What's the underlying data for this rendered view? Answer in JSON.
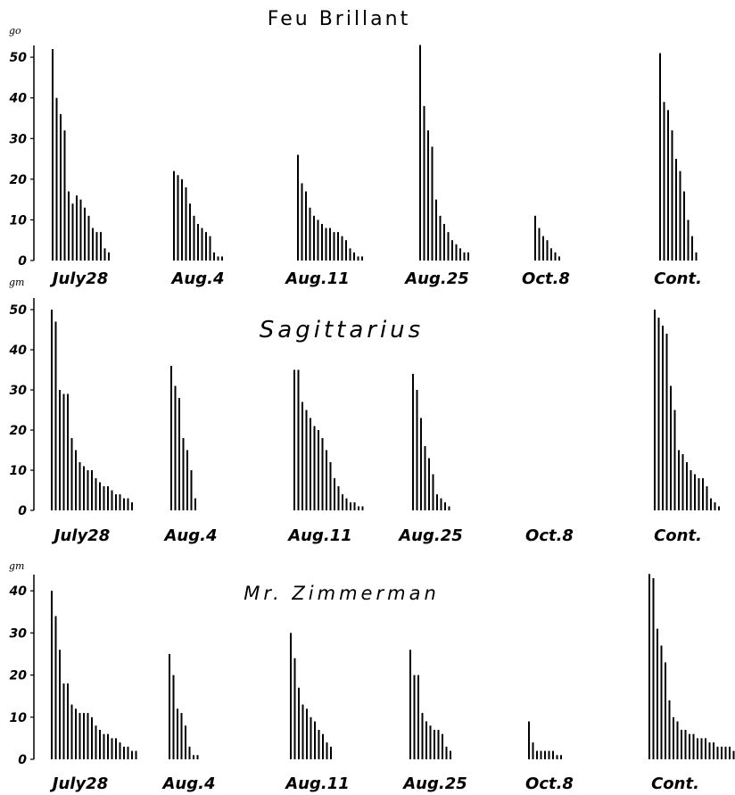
{
  "chart_data": [
    {
      "type": "bar",
      "title": "Feu Brillant",
      "yunit": "go",
      "yticks": [
        0,
        10,
        20,
        30,
        40,
        50
      ],
      "ylim": [
        0,
        52
      ],
      "grid": false,
      "groups": [
        {
          "label": "July28",
          "values": [
            52,
            40,
            36,
            32,
            17,
            14,
            16,
            15,
            13,
            11,
            8,
            7,
            7,
            3,
            2
          ]
        },
        {
          "label": "Aug.4",
          "values": [
            22,
            21,
            20,
            18,
            14,
            11,
            9,
            8,
            7,
            6,
            2,
            1,
            1
          ]
        },
        {
          "label": "Aug.11",
          "values": [
            26,
            19,
            17,
            13,
            11,
            10,
            9,
            8,
            8,
            7,
            7,
            6,
            5,
            3,
            2,
            1,
            1
          ]
        },
        {
          "label": "Aug.25",
          "values": [
            53,
            38,
            32,
            28,
            15,
            11,
            9,
            7,
            5,
            4,
            3,
            2,
            2
          ]
        },
        {
          "label": "Oct.8",
          "values": [
            11,
            8,
            6,
            5,
            3,
            2,
            1
          ]
        },
        {
          "label": "Cont.",
          "values": [
            51,
            39,
            37,
            32,
            25,
            22,
            17,
            10,
            6,
            2
          ]
        }
      ]
    },
    {
      "type": "bar",
      "title": "Sagittarius",
      "yunit": "gm",
      "yticks": [
        0,
        10,
        20,
        30,
        40,
        50
      ],
      "ylim": [
        0,
        52
      ],
      "grid": false,
      "groups": [
        {
          "label": "July28",
          "values": [
            50,
            47,
            30,
            29,
            29,
            18,
            15,
            12,
            11,
            10,
            10,
            8,
            7,
            6,
            6,
            5,
            4,
            4,
            3,
            3,
            2
          ]
        },
        {
          "label": "Aug.4",
          "values": [
            36,
            31,
            28,
            18,
            15,
            10,
            3
          ]
        },
        {
          "label": "Aug.11",
          "values": [
            35,
            35,
            27,
            25,
            23,
            21,
            20,
            18,
            15,
            12,
            8,
            6,
            4,
            3,
            2,
            2,
            1,
            1
          ]
        },
        {
          "label": "Aug.25",
          "values": [
            34,
            30,
            23,
            16,
            13,
            9,
            4,
            3,
            2,
            1
          ]
        },
        {
          "label": "Oct.8",
          "values": []
        },
        {
          "label": "Cont.",
          "values": [
            50,
            48,
            46,
            44,
            31,
            25,
            15,
            14,
            12,
            10,
            9,
            8,
            8,
            6,
            3,
            2,
            1
          ]
        }
      ]
    },
    {
      "type": "bar",
      "title": "Mr. Zimmerman",
      "yunit": "gm",
      "yticks": [
        0,
        10,
        20,
        30,
        40
      ],
      "ylim": [
        0,
        43
      ],
      "grid": false,
      "groups": [
        {
          "label": "July28",
          "values": [
            40,
            34,
            26,
            18,
            18,
            13,
            12,
            11,
            11,
            11,
            10,
            8,
            7,
            6,
            6,
            5,
            5,
            4,
            3,
            3,
            2,
            2
          ]
        },
        {
          "label": "Aug.4",
          "values": [
            25,
            20,
            12,
            11,
            8,
            3,
            1,
            1
          ]
        },
        {
          "label": "Aug.11",
          "values": [
            30,
            24,
            17,
            13,
            12,
            10,
            9,
            7,
            6,
            4,
            3
          ]
        },
        {
          "label": "Aug.25",
          "values": [
            26,
            20,
            20,
            11,
            9,
            8,
            7,
            7,
            6,
            3,
            2
          ]
        },
        {
          "label": "Oct.8",
          "values": [
            9,
            4,
            2,
            2,
            2,
            2,
            2,
            1,
            1
          ]
        },
        {
          "label": "Cont.",
          "values": [
            44,
            43,
            31,
            27,
            23,
            14,
            10,
            9,
            7,
            7,
            6,
            6,
            5,
            5,
            5,
            4,
            4,
            3,
            3,
            3,
            3,
            2,
            2,
            2,
            1
          ]
        }
      ]
    }
  ]
}
